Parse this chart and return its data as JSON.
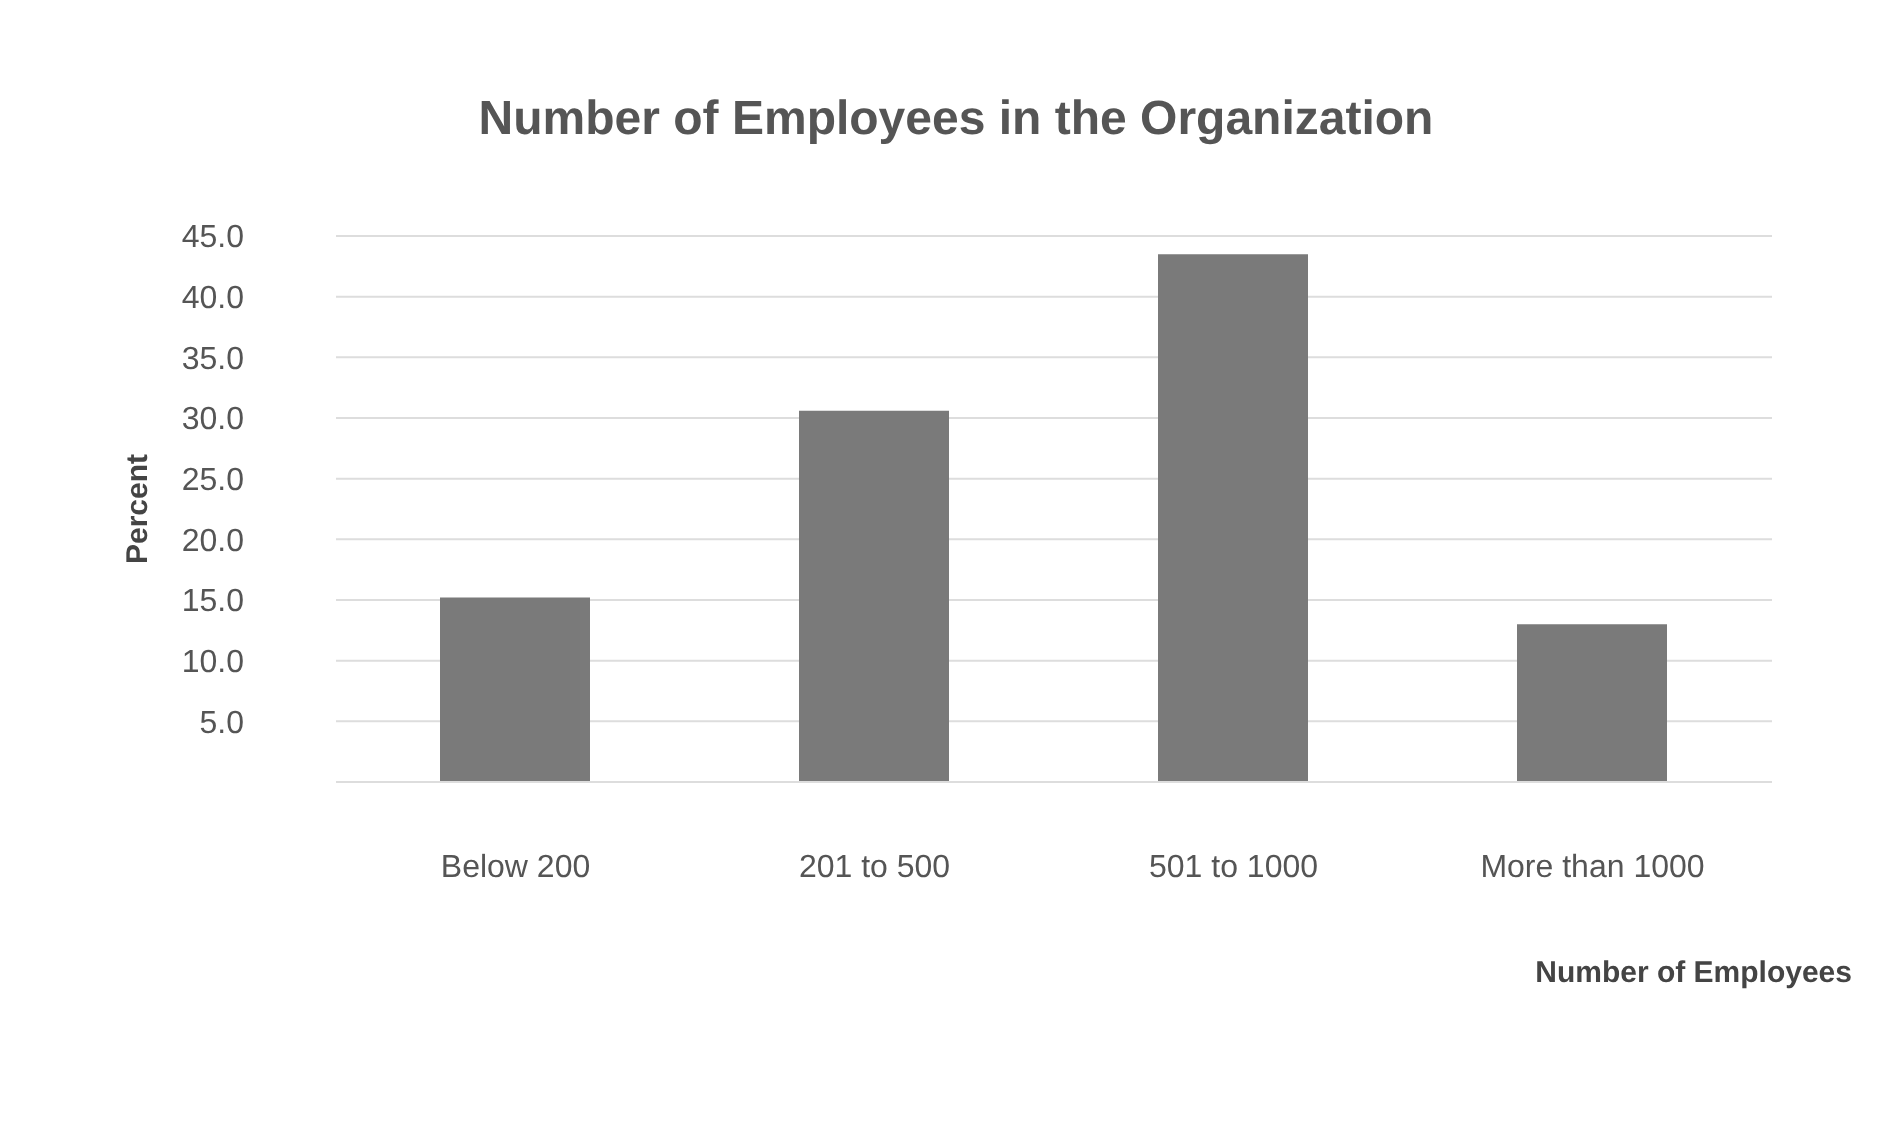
{
  "chart_data": {
    "type": "bar",
    "title": "Number of Employees in the Organization",
    "xlabel": "Number of Employees",
    "ylabel": "Percent",
    "categories": [
      "Below 200",
      "201 to 500",
      "501 to 1000",
      "More than 1000"
    ],
    "values": [
      15.2,
      30.6,
      43.5,
      13.0
    ],
    "color": "#7a7a7a",
    "ylim": [
      0,
      45
    ],
    "yticks": [
      {
        "value": 5,
        "label": "5.0"
      },
      {
        "value": 10,
        "label": "10.0"
      },
      {
        "value": 15,
        "label": "15.0"
      },
      {
        "value": 20,
        "label": "20.0"
      },
      {
        "value": 25,
        "label": "25.0"
      },
      {
        "value": 30,
        "label": "30.0"
      },
      {
        "value": 35,
        "label": "35.0"
      },
      {
        "value": 40,
        "label": "40.0"
      },
      {
        "value": 45,
        "label": "45.0"
      }
    ],
    "grid": "y"
  }
}
